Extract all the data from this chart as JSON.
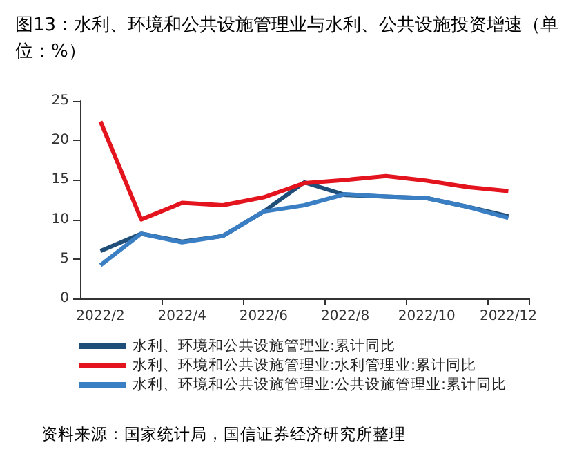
{
  "chart_data": {
    "type": "line",
    "title": "图13：水利、环境和公共设施管理业与水利、公共设施投资增速（单位：%）",
    "categories": [
      "2022/2",
      null,
      "2022/4",
      null,
      "2022/6",
      null,
      "2022/8",
      null,
      "2022/10",
      null,
      "2022/12"
    ],
    "series": [
      {
        "name": "水利、环境和公共设施管理业:累计同比",
        "color": "#1f4e79",
        "values": [
          6.0,
          8.2,
          7.2,
          7.9,
          11.0,
          14.7,
          13.1,
          12.9,
          12.7,
          11.6,
          10.4
        ]
      },
      {
        "name": "水利、环境和公共设施管理业:水利管理业:累计同比",
        "color": "#e3141e",
        "values": [
          22.4,
          10.0,
          12.1,
          11.8,
          12.8,
          14.6,
          15.0,
          15.5,
          14.9,
          14.1,
          13.6
        ]
      },
      {
        "name": "水利、环境和公共设施管理业:公共设施管理业:累计同比",
        "color": "#3a7fc4",
        "values": [
          4.2,
          8.2,
          7.1,
          7.9,
          11.0,
          11.8,
          13.2,
          12.9,
          12.7,
          11.6,
          10.2
        ]
      }
    ],
    "ylim": [
      0,
      25
    ],
    "yticks": [
      0,
      5,
      10,
      15,
      20,
      25
    ],
    "legend": "bottom",
    "marker": "none",
    "annotations": [
      "资料来源：国家统计局，国信证券经济研究所整理"
    ]
  }
}
